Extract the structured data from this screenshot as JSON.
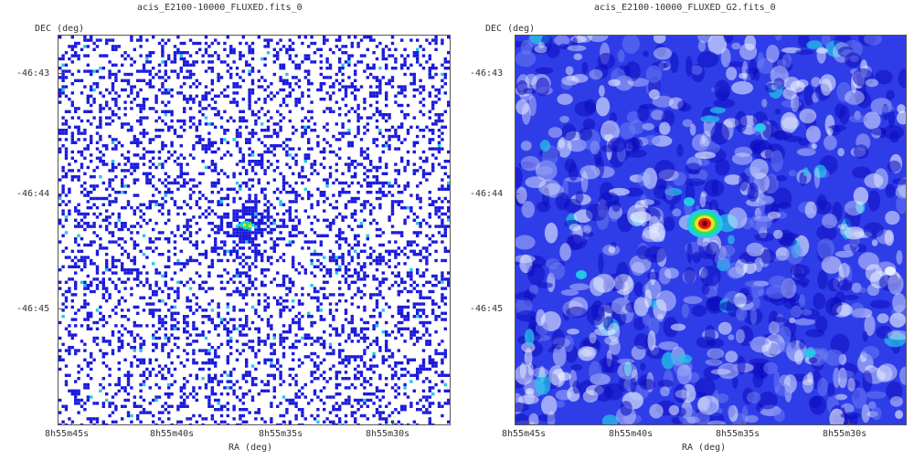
{
  "panels": [
    {
      "title": "acis_E2100-10000_FLUXED.fits_0",
      "ylabel": "DEC (deg)",
      "xlabel": "RA (deg)",
      "y_ticks": [
        "-46:43",
        "-46:44",
        "-46:45"
      ],
      "x_ticks": [
        "8h55m45s",
        "8h55m40s",
        "8h55m35s",
        "8h55m30s"
      ],
      "render": "sparse-counts"
    },
    {
      "title": "acis_E2100-10000_FLUXED_G2.fits_0",
      "ylabel": "DEC (deg)",
      "xlabel": "RA (deg)",
      "y_ticks": [
        "-46:43",
        "-46:44",
        "-46:45"
      ],
      "x_ticks": [
        "8h55m45s",
        "8h55m40s",
        "8h55m35s",
        "8h55m30s"
      ],
      "render": "smoothed"
    }
  ],
  "colors": {
    "low": "#1a1adc",
    "mid": "#2f3de8",
    "bright": "#e8efff",
    "cyan": "#22c8e8",
    "green": "#30e060",
    "yellow": "#f0e020",
    "red": "#e01818",
    "core": "#6a0000"
  }
}
